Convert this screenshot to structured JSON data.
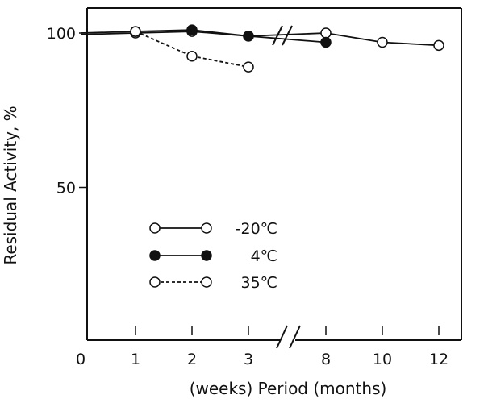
{
  "chart_data": {
    "type": "line",
    "title": "",
    "ylabel": "Residual Activity, %",
    "xlabel": "(weeks) Period (months)",
    "ylim": [
      0,
      105
    ],
    "yticks": [
      100,
      50
    ],
    "x_categories": [
      "0",
      "1",
      "2",
      "3",
      "8",
      "10",
      "12"
    ],
    "axis_break_between": [
      "3",
      "8"
    ],
    "legend_placement": "center-left",
    "grid": false,
    "series": [
      {
        "name": "-20℃",
        "marker": "open-circle",
        "line": "solid",
        "points": [
          {
            "x": "0",
            "y": 99.5
          },
          {
            "x": "1",
            "y": 100
          },
          {
            "x": "2",
            "y": 100.5
          },
          {
            "x": "3",
            "y": 99
          },
          {
            "x": "8",
            "y": 100
          },
          {
            "x": "10",
            "y": 97
          },
          {
            "x": "12",
            "y": 96
          }
        ]
      },
      {
        "name": "4℃",
        "marker": "filled-circle",
        "line": "solid",
        "points": [
          {
            "x": "0",
            "y": 100
          },
          {
            "x": "1",
            "y": 100.5
          },
          {
            "x": "2",
            "y": 101
          },
          {
            "x": "3",
            "y": 99
          },
          {
            "x": "8",
            "y": 97
          }
        ]
      },
      {
        "name": "35℃",
        "marker": "open-circle",
        "line": "dashed",
        "points": [
          {
            "x": "1",
            "y": 100.5
          },
          {
            "x": "2",
            "y": 92.5
          },
          {
            "x": "3",
            "y": 89
          }
        ]
      }
    ]
  }
}
